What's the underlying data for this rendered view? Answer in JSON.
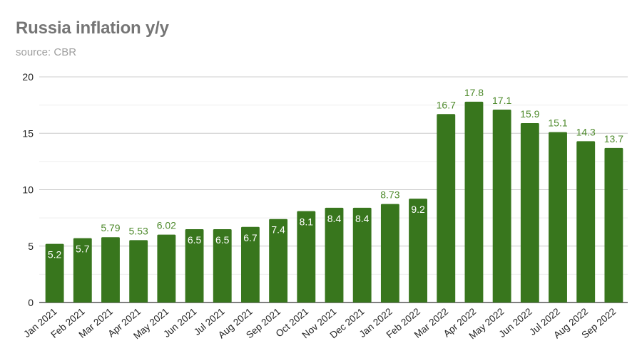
{
  "chart_data": {
    "type": "bar",
    "title": "Russia inflation y/y",
    "subtitle": "source: CBR",
    "xlabel": "",
    "ylabel": "",
    "ylim": [
      0,
      20
    ],
    "yticks": [
      0,
      5,
      10,
      15,
      20
    ],
    "grid": true,
    "bar_color": "#38761d",
    "categories": [
      "Jan 2021",
      "Feb 2021",
      "Mar 2021",
      "Apr 2021",
      "May 2021",
      "Jun 2021",
      "Jul 2021",
      "Aug 2021",
      "Sep 2021",
      "Oct 2021",
      "Nov 2021",
      "Dec 2021",
      "Jan 2022",
      "Feb 2022",
      "Mar 2022",
      "Apr 2022",
      "May 2022",
      "Jun 2022",
      "Jul 2022",
      "Aug 2022",
      "Sep 2022"
    ],
    "values": [
      5.2,
      5.7,
      5.79,
      5.53,
      6.02,
      6.5,
      6.5,
      6.7,
      7.4,
      8.1,
      8.4,
      8.4,
      8.73,
      9.2,
      16.7,
      17.8,
      17.1,
      15.9,
      15.1,
      14.3,
      13.7
    ],
    "data_labels": [
      "5.2",
      "5.7",
      "5.79",
      "5.53",
      "6.02",
      "6.5",
      "6.5",
      "6.7",
      "7.4",
      "8.1",
      "8.4",
      "8.4",
      "8.73",
      "9.2",
      "16.7",
      "17.8",
      "17.1",
      "15.9",
      "15.1",
      "14.3",
      "13.7"
    ],
    "label_inside": [
      true,
      true,
      false,
      false,
      false,
      true,
      true,
      true,
      true,
      true,
      true,
      true,
      false,
      true,
      false,
      false,
      false,
      false,
      false,
      false,
      false
    ],
    "label_colors": {
      "inside": "#ffffff",
      "outside": "#4e8a2c"
    }
  }
}
